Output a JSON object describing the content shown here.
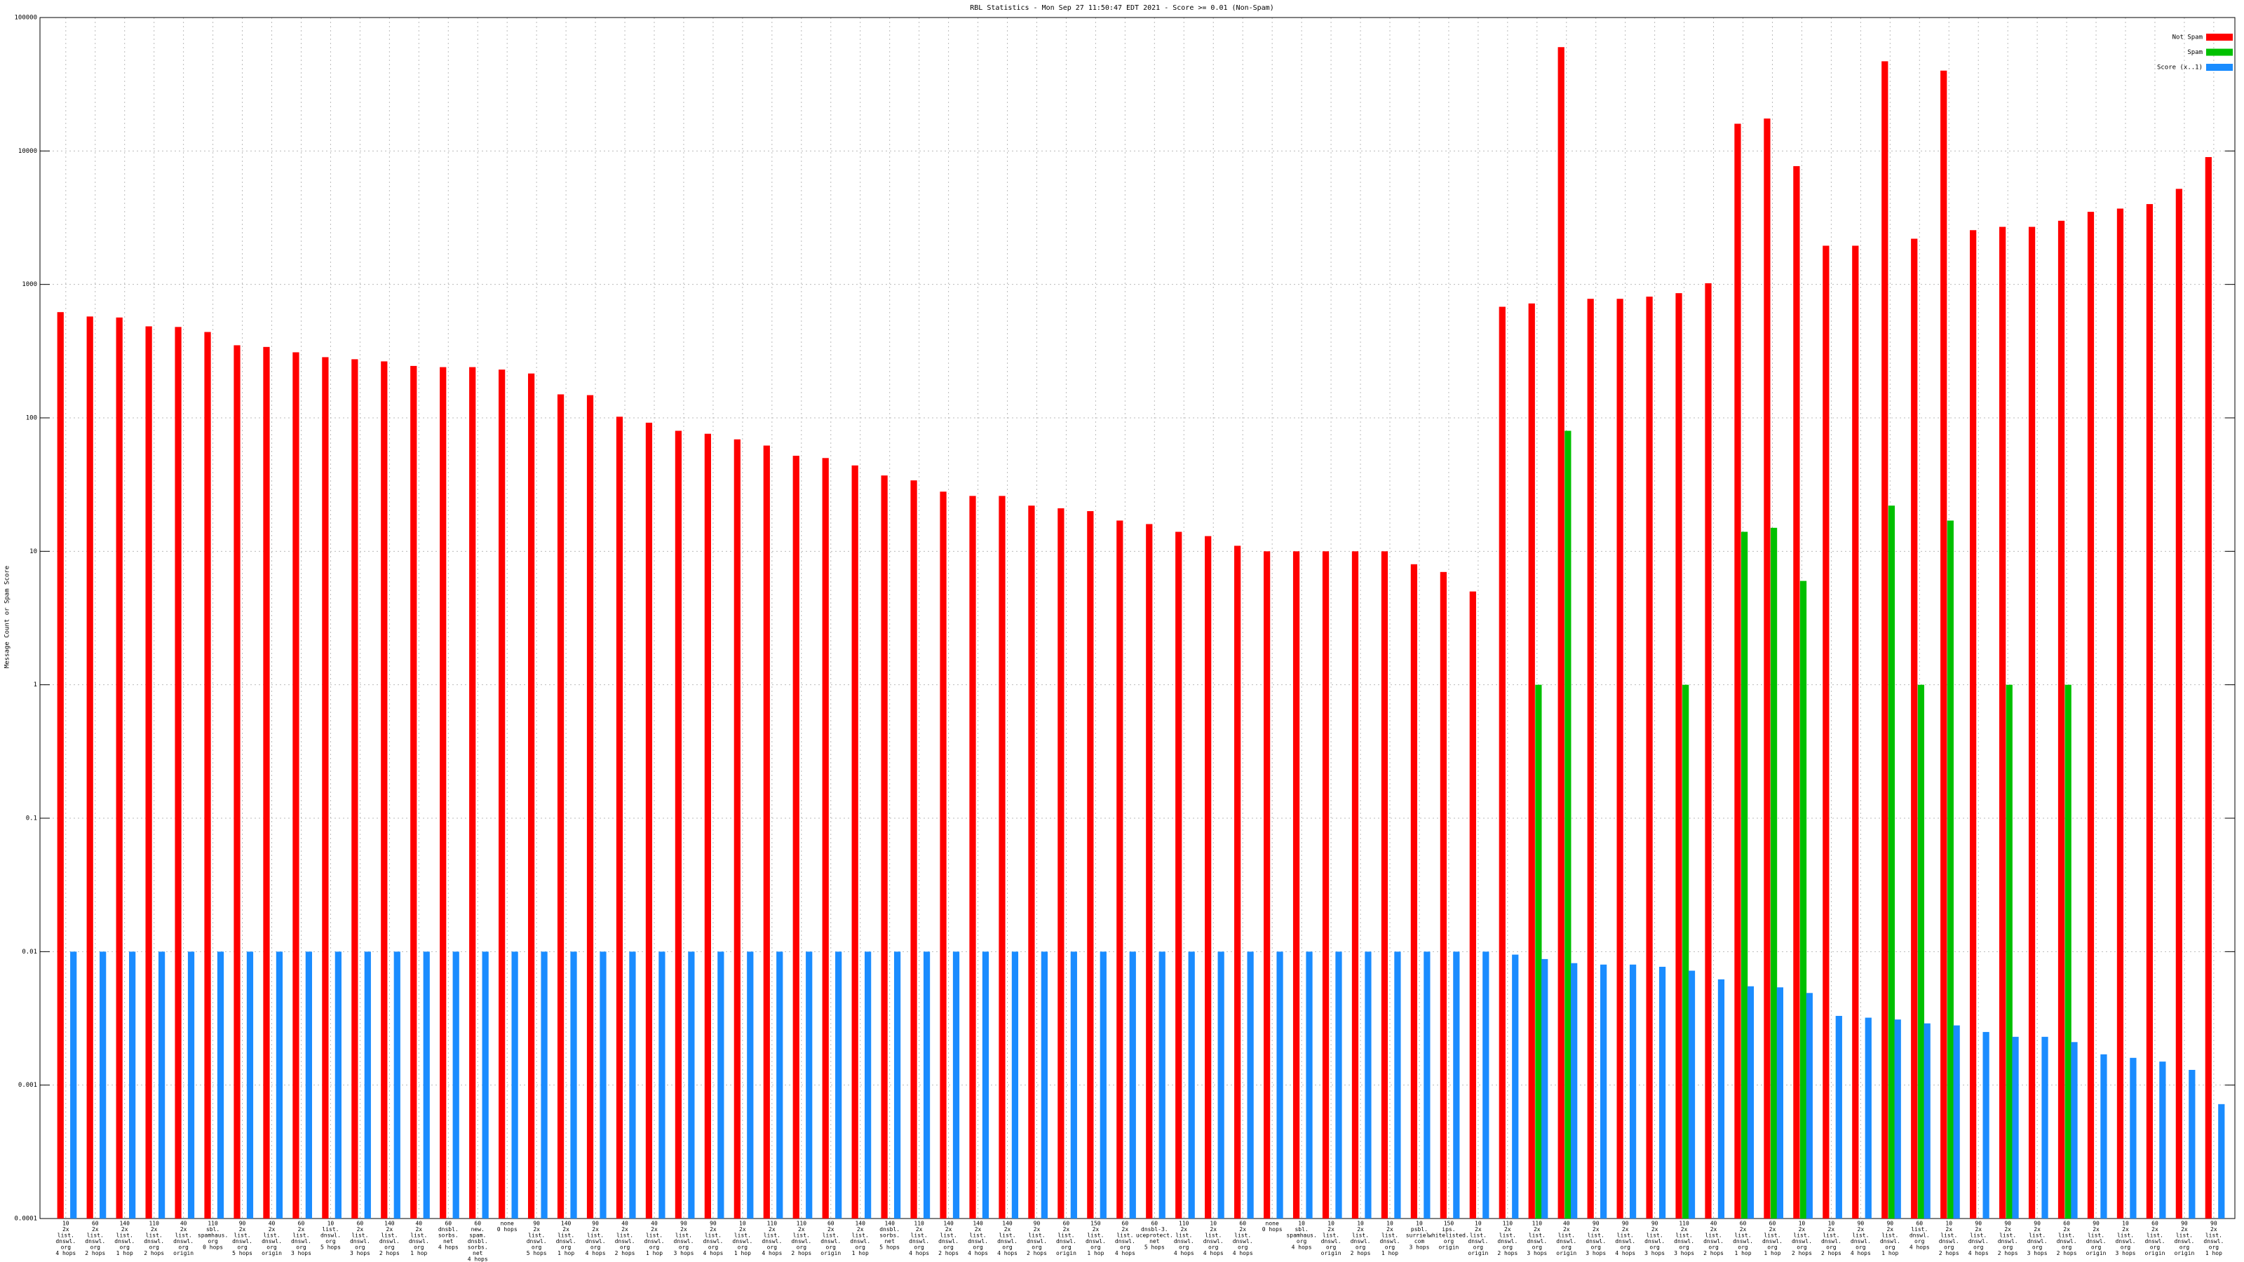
{
  "chart_data": {
    "type": "bar",
    "title": "RBL Statistics - Mon Sep 27 11:50:47 EDT 2021 - Score >= 0.01 (Non-Spam)",
    "y_label": "Message Count or Spam Score",
    "log_scale": true,
    "grid": true,
    "legend": "upper right",
    "ylim": [
      0.0001,
      100000
    ],
    "yticks": [
      0.0001,
      0.001,
      0.01,
      0.1,
      1,
      10,
      100,
      1000,
      10000,
      100000
    ],
    "categories": [
      [
        "10",
        "2x",
        "list.",
        "dnswl.",
        "org",
        "4 hops"
      ],
      [
        "60",
        "2x",
        "list.",
        "dnswl.",
        "org",
        "2 hops"
      ],
      [
        "140",
        "2x",
        "list.",
        "dnswl.",
        "org",
        "1 hop"
      ],
      [
        "110",
        "2x",
        "list.",
        "dnswl.",
        "org",
        "2 hops"
      ],
      [
        "40",
        "2x",
        "list.",
        "dnswl.",
        "org",
        "origin"
      ],
      [
        "110",
        "sbl.",
        "spamhaus.",
        "org",
        "0 hops"
      ],
      [
        "90",
        "2x",
        "list.",
        "dnswl.",
        "org",
        "5 hops"
      ],
      [
        "40",
        "2x",
        "list.",
        "dnswl.",
        "org",
        "origin"
      ],
      [
        "60",
        "2x",
        "list.",
        "dnswl.",
        "org",
        "3 hops"
      ],
      [
        "10",
        "list.",
        "dnswl.",
        "org",
        "5 hops"
      ],
      [
        "60",
        "2x",
        "list.",
        "dnswl.",
        "org",
        "3 hops"
      ],
      [
        "140",
        "2x",
        "list.",
        "dnswl.",
        "org",
        "2 hops"
      ],
      [
        "40",
        "2x",
        "list.",
        "dnswl.",
        "org",
        "1 hop"
      ],
      [
        "60",
        "dnsbl.",
        "sorbs.",
        "net",
        "4 hops"
      ],
      [
        "60",
        "new.",
        "spam.",
        "dnsbl.",
        "sorbs.",
        "net",
        "4 hops"
      ],
      [
        "none",
        "0 hops"
      ],
      [
        "90",
        "2x",
        "list.",
        "dnswl.",
        "org",
        "5 hops"
      ],
      [
        "140",
        "2x",
        "list.",
        "dnswl.",
        "org",
        "1 hop"
      ],
      [
        "90",
        "2x",
        "list.",
        "dnswl.",
        "org",
        "4 hops"
      ],
      [
        "40",
        "2x",
        "list.",
        "dnswl.",
        "org",
        "2 hops"
      ],
      [
        "40",
        "2x",
        "list.",
        "dnswl.",
        "org",
        "1 hop"
      ],
      [
        "90",
        "2x",
        "list.",
        "dnswl.",
        "org",
        "3 hops"
      ],
      [
        "90",
        "2x",
        "list.",
        "dnswl.",
        "org",
        "4 hops"
      ],
      [
        "10",
        "2x",
        "list.",
        "dnswl.",
        "org",
        "1 hop"
      ],
      [
        "110",
        "2x",
        "list.",
        "dnswl.",
        "org",
        "4 hops"
      ],
      [
        "110",
        "2x",
        "list.",
        "dnswl.",
        "org",
        "2 hops"
      ],
      [
        "60",
        "2x",
        "list.",
        "dnswl.",
        "org",
        "origin"
      ],
      [
        "140",
        "2x",
        "list.",
        "dnswl.",
        "org",
        "1 hop"
      ],
      [
        "140",
        "dnsbl.",
        "sorbs.",
        "net",
        "5 hops"
      ],
      [
        "110",
        "2x",
        "list.",
        "dnswl.",
        "org",
        "4 hops"
      ],
      [
        "140",
        "2x",
        "list.",
        "dnswl.",
        "org",
        "2 hops"
      ],
      [
        "140",
        "2x",
        "list.",
        "dnswl.",
        "org",
        "4 hops"
      ],
      [
        "140",
        "2x",
        "list.",
        "dnswl.",
        "org",
        "4 hops"
      ],
      [
        "90",
        "2x",
        "list.",
        "dnswl.",
        "org",
        "2 hops"
      ],
      [
        "60",
        "2x",
        "list.",
        "dnswl.",
        "org",
        "origin"
      ],
      [
        "150",
        "2x",
        "list.",
        "dnswl.",
        "org",
        "1 hop"
      ],
      [
        "60",
        "2x",
        "list.",
        "dnswl.",
        "org",
        "4 hops"
      ],
      [
        "60",
        "dnsbl-3.",
        "uceprotect.",
        "net",
        "5 hops"
      ],
      [
        "110",
        "2x",
        "list.",
        "dnswl.",
        "org",
        "4 hops"
      ],
      [
        "10",
        "2x",
        "list.",
        "dnswl.",
        "org",
        "4 hops"
      ],
      [
        "60",
        "2x",
        "list.",
        "dnswl.",
        "org",
        "4 hops"
      ],
      [
        "none",
        "0 hops"
      ],
      [
        "10",
        "sbl.",
        "spamhaus.",
        "org",
        "4 hops"
      ],
      [
        "10",
        "2x",
        "list.",
        "dnswl.",
        "org",
        "origin"
      ],
      [
        "10",
        "2x",
        "list.",
        "dnswl.",
        "org",
        "2 hops"
      ],
      [
        "10",
        "2x",
        "list.",
        "dnswl.",
        "org",
        "1 hop"
      ],
      [
        "10",
        "psbl.",
        "surriel.",
        "com",
        "3 hops"
      ],
      [
        "150",
        "ips.",
        "whitelisted.",
        "org",
        "origin"
      ],
      [
        "10",
        "2x",
        "list.",
        "dnswl.",
        "org",
        "origin"
      ],
      [
        "110",
        "2x",
        "list.",
        "dnswl.",
        "org",
        "2 hops"
      ],
      [
        "110",
        "2x",
        "list.",
        "dnswl.",
        "org",
        "3 hops"
      ],
      [
        "40",
        "2x",
        "list.",
        "dnswl.",
        "org",
        "origin"
      ],
      [
        "90",
        "2x",
        "list.",
        "dnswl.",
        "org",
        "3 hops"
      ],
      [
        "90",
        "2x",
        "list.",
        "dnswl.",
        "org",
        "4 hops"
      ],
      [
        "90",
        "2x",
        "list.",
        "dnswl.",
        "org",
        "3 hops"
      ],
      [
        "110",
        "2x",
        "list.",
        "dnswl.",
        "org",
        "3 hops"
      ],
      [
        "40",
        "2x",
        "list.",
        "dnswl.",
        "org",
        "2 hops"
      ],
      [
        "60",
        "2x",
        "list.",
        "dnswl.",
        "org",
        "1 hop"
      ],
      [
        "60",
        "2x",
        "list.",
        "dnswl.",
        "org",
        "1 hop"
      ],
      [
        "10",
        "2x",
        "list.",
        "dnswl.",
        "org",
        "2 hops"
      ],
      [
        "10",
        "2x",
        "list.",
        "dnswl.",
        "org",
        "2 hops"
      ],
      [
        "90",
        "2x",
        "list.",
        "dnswl.",
        "org",
        "4 hops"
      ],
      [
        "90",
        "2x",
        "list.",
        "dnswl.",
        "org",
        "1 hop"
      ],
      [
        "60",
        "list.",
        "dnswl.",
        "org",
        "4 hops"
      ],
      [
        "10",
        "2x",
        "list.",
        "dnswl.",
        "org",
        "2 hops"
      ],
      [
        "90",
        "2x",
        "list.",
        "dnswl.",
        "org",
        "4 hops"
      ],
      [
        "90",
        "2x",
        "list.",
        "dnswl.",
        "org",
        "2 hops"
      ],
      [
        "90",
        "2x",
        "list.",
        "dnswl.",
        "org",
        "3 hops"
      ],
      [
        "60",
        "2x",
        "list.",
        "dnswl.",
        "org",
        "2 hops"
      ],
      [
        "90",
        "2x",
        "list.",
        "dnswl.",
        "org",
        "origin"
      ],
      [
        "10",
        "2x",
        "list.",
        "dnswl.",
        "org",
        "3 hops"
      ],
      [
        "60",
        "2x",
        "list.",
        "dnswl.",
        "org",
        "origin"
      ],
      [
        "90",
        "2x",
        "list.",
        "dnswl.",
        "org",
        "origin"
      ],
      [
        "90",
        "2x",
        "list.",
        "dnswl.",
        "org",
        "1 hop"
      ]
    ],
    "series": [
      {
        "name": "Not Spam",
        "color": "#ff0000",
        "values": [
          620,
          575,
          565,
          485,
          480,
          440,
          350,
          340,
          310,
          285,
          275,
          265,
          245,
          240,
          240,
          230,
          215,
          150,
          148,
          102,
          92,
          80,
          76,
          69,
          62,
          52,
          50,
          44,
          37,
          34,
          28,
          26,
          26,
          22,
          21,
          20,
          17,
          16,
          14,
          13,
          11,
          10,
          10,
          10,
          10,
          10,
          8,
          7,
          5,
          680,
          720,
          60000,
          780,
          780,
          810,
          860,
          1020,
          16000,
          17500,
          7700,
          1950,
          1950,
          47000,
          2200,
          40000,
          2550,
          2700,
          2700,
          3000,
          3500,
          3700,
          4000,
          5200,
          9000
        ]
      },
      {
        "name": "Spam",
        "color": "#00c000",
        "values": [
          0,
          0,
          0,
          0,
          0,
          0,
          0,
          0,
          0,
          0,
          0,
          0,
          0,
          0,
          0,
          0,
          0,
          0,
          0,
          0,
          0,
          0,
          0,
          0,
          0,
          0,
          0,
          0,
          0,
          0,
          0,
          0,
          0,
          0,
          0,
          0,
          0,
          0,
          0,
          0,
          0,
          0,
          0,
          0,
          0,
          0,
          0,
          0,
          0,
          0,
          1,
          80,
          0,
          0,
          0,
          1,
          0,
          14,
          15,
          6,
          0,
          0,
          22,
          1,
          17,
          0,
          1,
          0,
          1,
          0,
          0,
          0,
          0,
          0
        ]
      },
      {
        "name": "Score (x..1)",
        "color": "#1a8cff",
        "values": [
          0.01,
          0.01,
          0.01,
          0.01,
          0.01,
          0.01,
          0.01,
          0.01,
          0.01,
          0.01,
          0.01,
          0.01,
          0.01,
          0.01,
          0.01,
          0.01,
          0.01,
          0.01,
          0.01,
          0.01,
          0.01,
          0.01,
          0.01,
          0.01,
          0.01,
          0.01,
          0.01,
          0.01,
          0.01,
          0.01,
          0.01,
          0.01,
          0.01,
          0.01,
          0.01,
          0.01,
          0.01,
          0.01,
          0.01,
          0.01,
          0.01,
          0.01,
          0.01,
          0.01,
          0.01,
          0.01,
          0.01,
          0.01,
          0.01,
          0.0095,
          0.0088,
          0.0082,
          0.008,
          0.008,
          0.0077,
          0.0072,
          0.0062,
          0.0055,
          0.0054,
          0.0049,
          0.0033,
          0.0032,
          0.0031,
          0.0029,
          0.0028,
          0.0025,
          0.0023,
          0.0023,
          0.0021,
          0.0017,
          0.0016,
          0.0015,
          0.0013,
          0.00072
        ]
      }
    ]
  }
}
